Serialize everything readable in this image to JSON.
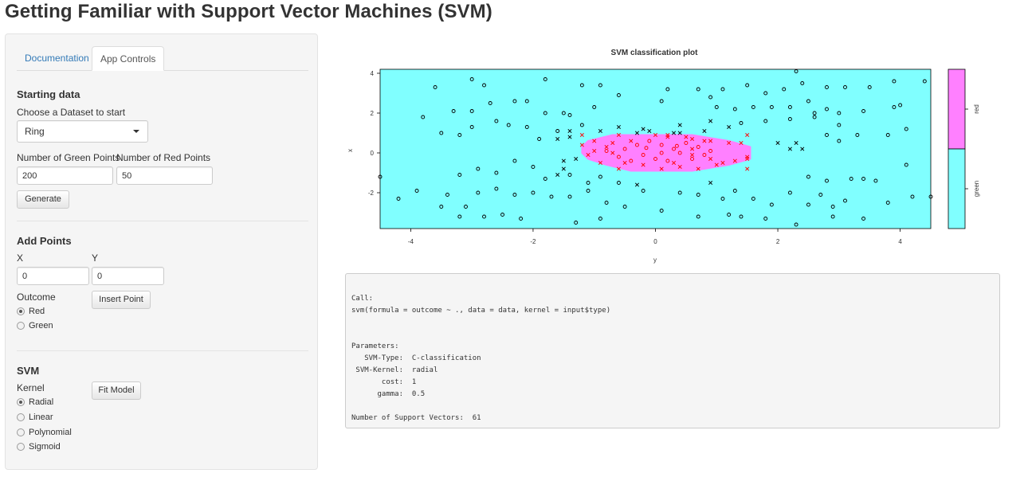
{
  "title": "Getting Familiar with Support Vector Machines (SVM)",
  "tabs": {
    "documentation": "Documentation",
    "app_controls": "App Controls"
  },
  "starting": {
    "heading": "Starting data",
    "dataset_label": "Choose a Dataset to start",
    "dataset_value": "Ring",
    "green_label": "Number of Green Points",
    "red_label": "Number of Red Points",
    "green_value": "200",
    "red_value": "50",
    "generate_label": "Generate"
  },
  "add_points": {
    "heading": "Add Points",
    "x_label": "X",
    "y_label": "Y",
    "x_value": "0",
    "y_value": "0",
    "outcome_label": "Outcome",
    "insert_label": "Insert Point",
    "options": [
      "Red",
      "Green"
    ],
    "selected": "Red"
  },
  "svm": {
    "heading": "SVM",
    "kernel_label": "Kernel",
    "fit_label": "Fit Model",
    "kernels": [
      "Radial",
      "Linear",
      "Polynomial",
      "Sigmoid"
    ],
    "selected": "Radial"
  },
  "chart_data": {
    "type": "scatter",
    "title": "SVM classification plot",
    "xlabel": "y",
    "ylabel": "x",
    "xlim": [
      -4.5,
      4.5
    ],
    "ylim": [
      -3.8,
      4.2
    ],
    "xticks": [
      -4,
      -2,
      0,
      2,
      4
    ],
    "yticks": [
      -2,
      0,
      2,
      4
    ],
    "legend_labels": [
      "red",
      "green"
    ],
    "legend_position": "right",
    "colors": {
      "green_region": "#80ffff",
      "red_region": "#ff80ff",
      "red_points": "#ff0000",
      "other_points": "#000000",
      "frame": "#000000"
    },
    "red_region_rows": [
      [
        0.9,
        -0.7,
        0.6
      ],
      [
        0.6,
        -1.1,
        1.2
      ],
      [
        0.3,
        -1.2,
        1.55
      ],
      [
        0.0,
        -1.2,
        1.55
      ],
      [
        -0.3,
        -1.1,
        1.55
      ],
      [
        -0.6,
        -0.8,
        1.2
      ],
      [
        -0.9,
        -0.4,
        0.6
      ]
    ],
    "series": [
      {
        "name": "green",
        "marker": "o",
        "points": [
          [
            -3.0,
            3.7
          ],
          [
            -2.8,
            3.4
          ],
          [
            -3.6,
            3.3
          ],
          [
            -1.8,
            3.7
          ],
          [
            -1.2,
            3.4
          ],
          [
            -0.9,
            3.4
          ],
          [
            0.2,
            3.2
          ],
          [
            0.7,
            3.2
          ],
          [
            1.1,
            3.2
          ],
          [
            1.5,
            3.4
          ],
          [
            1.8,
            3.0
          ],
          [
            2.1,
            3.2
          ],
          [
            2.4,
            3.5
          ],
          [
            2.8,
            3.3
          ],
          [
            3.1,
            3.3
          ],
          [
            3.5,
            3.3
          ],
          [
            4.4,
            3.6
          ],
          [
            3.9,
            3.6
          ],
          [
            -3.3,
            2.1
          ],
          [
            -3.0,
            2.1
          ],
          [
            -2.7,
            2.5
          ],
          [
            -2.3,
            2.6
          ],
          [
            -2.1,
            2.6
          ],
          [
            -1.8,
            2.0
          ],
          [
            -1.5,
            2.0
          ],
          [
            -1.4,
            1.9
          ],
          [
            -1.0,
            2.3
          ],
          [
            -0.6,
            2.9
          ],
          [
            0.1,
            2.6
          ],
          [
            0.9,
            2.8
          ],
          [
            1.0,
            2.3
          ],
          [
            1.3,
            2.2
          ],
          [
            1.6,
            2.3
          ],
          [
            1.9,
            2.3
          ],
          [
            2.2,
            2.3
          ],
          [
            2.5,
            2.6
          ],
          [
            2.6,
            2.0
          ],
          [
            2.8,
            2.2
          ],
          [
            3.0,
            2.0
          ],
          [
            3.4,
            2.1
          ],
          [
            3.9,
            2.3
          ],
          [
            4.0,
            2.4
          ],
          [
            -3.8,
            1.8
          ],
          [
            -3.0,
            1.3
          ],
          [
            -2.6,
            1.6
          ],
          [
            -2.4,
            1.4
          ],
          [
            -2.1,
            1.3
          ],
          [
            -1.9,
            0.7
          ],
          [
            -1.6,
            1.1
          ],
          [
            -1.2,
            1.4
          ],
          [
            1.4,
            1.5
          ],
          [
            1.8,
            1.6
          ],
          [
            2.2,
            1.7
          ],
          [
            2.6,
            1.8
          ],
          [
            3.0,
            1.4
          ],
          [
            3.3,
            0.9
          ],
          [
            3.8,
            0.9
          ],
          [
            4.1,
            1.2
          ],
          [
            -3.5,
            1.0
          ],
          [
            -3.2,
            0.9
          ],
          [
            2.8,
            0.9
          ],
          [
            3.0,
            0.6
          ],
          [
            -4.5,
            -1.2
          ],
          [
            -3.2,
            -1.1
          ],
          [
            -2.9,
            -0.8
          ],
          [
            -2.6,
            -1.0
          ],
          [
            -2.3,
            -0.4
          ],
          [
            -2.0,
            -0.7
          ],
          [
            -1.8,
            -1.3
          ],
          [
            -1.4,
            -1.1
          ],
          [
            -1.1,
            -1.5
          ],
          [
            -0.9,
            -1.2
          ],
          [
            -0.6,
            -1.5
          ],
          [
            3.2,
            -1.3
          ],
          [
            3.6,
            -1.4
          ],
          [
            4.1,
            -0.6
          ],
          [
            2.8,
            -1.4
          ],
          [
            2.5,
            -1.2
          ],
          [
            -4.2,
            -2.3
          ],
          [
            -3.9,
            -1.9
          ],
          [
            -3.4,
            -2.1
          ],
          [
            -3.2,
            -3.2
          ],
          [
            -2.9,
            -2.0
          ],
          [
            -2.6,
            -1.8
          ],
          [
            -2.3,
            -2.1
          ],
          [
            -2.0,
            -2.0
          ],
          [
            -1.7,
            -2.2
          ],
          [
            -1.4,
            -2.2
          ],
          [
            -1.1,
            -1.9
          ],
          [
            -0.8,
            -2.5
          ],
          [
            -0.5,
            -2.7
          ],
          [
            -0.2,
            -1.9
          ],
          [
            0.4,
            -2.0
          ],
          [
            0.7,
            -2.1
          ],
          [
            1.1,
            -2.3
          ],
          [
            1.3,
            -1.9
          ],
          [
            1.6,
            -2.3
          ],
          [
            1.9,
            -2.6
          ],
          [
            2.2,
            -2.0
          ],
          [
            2.5,
            -2.6
          ],
          [
            2.7,
            -2.1
          ],
          [
            2.9,
            -2.7
          ],
          [
            3.1,
            -2.4
          ],
          [
            3.4,
            -1.3
          ],
          [
            3.8,
            -2.5
          ],
          [
            4.2,
            -2.2
          ],
          [
            4.5,
            -2.2
          ],
          [
            -3.5,
            -2.7
          ],
          [
            -3.1,
            -2.7
          ],
          [
            -2.8,
            -3.2
          ],
          [
            -2.5,
            -3.1
          ],
          [
            -2.2,
            -3.3
          ],
          [
            -1.3,
            -3.5
          ],
          [
            -0.9,
            -3.3
          ],
          [
            0.1,
            -2.9
          ],
          [
            0.7,
            -3.2
          ],
          [
            1.2,
            -3.1
          ],
          [
            1.4,
            -3.2
          ],
          [
            1.8,
            -3.3
          ],
          [
            2.3,
            -3.6
          ],
          [
            2.9,
            -3.2
          ],
          [
            3.4,
            -3.3
          ],
          [
            2.3,
            4.1
          ]
        ]
      },
      {
        "name": "red",
        "marker": "o",
        "points": [
          [
            -0.5,
            0.2
          ],
          [
            -0.3,
            0.4
          ],
          [
            -0.1,
            0.6
          ],
          [
            0.1,
            0.4
          ],
          [
            0.3,
            0.2
          ],
          [
            0.5,
            0.5
          ],
          [
            0.7,
            0.3
          ],
          [
            -0.6,
            -0.2
          ],
          [
            -0.4,
            -0.4
          ],
          [
            -0.2,
            -0.1
          ],
          [
            0.0,
            -0.3
          ],
          [
            0.2,
            -0.4
          ],
          [
            0.4,
            0.0
          ],
          [
            0.6,
            -0.3
          ],
          [
            0.8,
            -0.1
          ],
          [
            0.9,
            0.1
          ],
          [
            -0.8,
            0.1
          ],
          [
            0.1,
            0.0
          ],
          [
            0.35,
            0.35
          ],
          [
            -0.15,
            0.25
          ]
        ]
      },
      {
        "name": "support vectors",
        "marker": "x",
        "points": [
          [
            -0.9,
            1.1
          ],
          [
            -0.6,
            0.9
          ],
          [
            -0.3,
            1.0
          ],
          [
            0.0,
            0.9
          ],
          [
            0.3,
            1.0
          ],
          [
            0.6,
            0.7
          ],
          [
            0.9,
            0.6
          ],
          [
            1.2,
            0.5
          ],
          [
            -1.2,
            0.9
          ],
          [
            -1.0,
            0.6
          ],
          [
            -0.7,
            0.5
          ],
          [
            -0.4,
            0.6
          ],
          [
            0.2,
            0.8
          ],
          [
            0.5,
            0.8
          ],
          [
            0.8,
            0.6
          ],
          [
            -1.0,
            0.1
          ],
          [
            -0.7,
            0.0
          ],
          [
            -0.5,
            -0.5
          ],
          [
            -0.2,
            -0.6
          ],
          [
            0.1,
            -0.8
          ],
          [
            0.4,
            -0.7
          ],
          [
            0.7,
            -0.8
          ],
          [
            1.0,
            -0.6
          ],
          [
            1.3,
            -0.4
          ],
          [
            1.5,
            -0.3
          ],
          [
            -0.9,
            -0.5
          ],
          [
            -1.3,
            -0.3
          ],
          [
            0.9,
            -0.3
          ],
          [
            1.1,
            -0.5
          ],
          [
            -1.5,
            -0.8
          ],
          [
            -1.6,
            -1.1
          ],
          [
            -1.5,
            -0.4
          ],
          [
            -0.3,
            -1.6
          ],
          [
            0.9,
            -1.5
          ],
          [
            1.5,
            -0.8
          ],
          [
            2.2,
            0.2
          ],
          [
            2.4,
            0.2
          ],
          [
            2.3,
            0.5
          ],
          [
            -1.6,
            0.7
          ],
          [
            -1.2,
            0.4
          ],
          [
            -0.6,
            1.3
          ],
          [
            0.4,
            1.4
          ],
          [
            0.9,
            1.6
          ],
          [
            1.5,
            0.9
          ],
          [
            1.2,
            1.3
          ],
          [
            -1.4,
            1.1
          ],
          [
            -0.2,
            1.2
          ],
          [
            0.6,
            -0.1
          ],
          [
            0.4,
            1.0
          ],
          [
            -0.6,
            -0.8
          ],
          [
            -0.1,
            1.1
          ],
          [
            0.3,
            -0.5
          ],
          [
            1.4,
            0.5
          ],
          [
            2.0,
            0.5
          ],
          [
            1.5,
            -0.2
          ],
          [
            -1.4,
            0.8
          ],
          [
            -0.8,
            0.3
          ],
          [
            0.6,
            0.2
          ],
          [
            -1.1,
            -0.1
          ],
          [
            0.2,
            0.9
          ],
          [
            0.8,
            1.1
          ]
        ]
      }
    ]
  },
  "summary": {
    "lines": [
      "Call:",
      "svm(formula = outcome ~ ., data = data, kernel = input$type)",
      "",
      "",
      "Parameters:",
      "   SVM-Type:  C-classification",
      " SVM-Kernel:  radial",
      "       cost:  1",
      "      gamma:  0.5",
      "",
      "Number of Support Vectors:  61"
    ]
  }
}
